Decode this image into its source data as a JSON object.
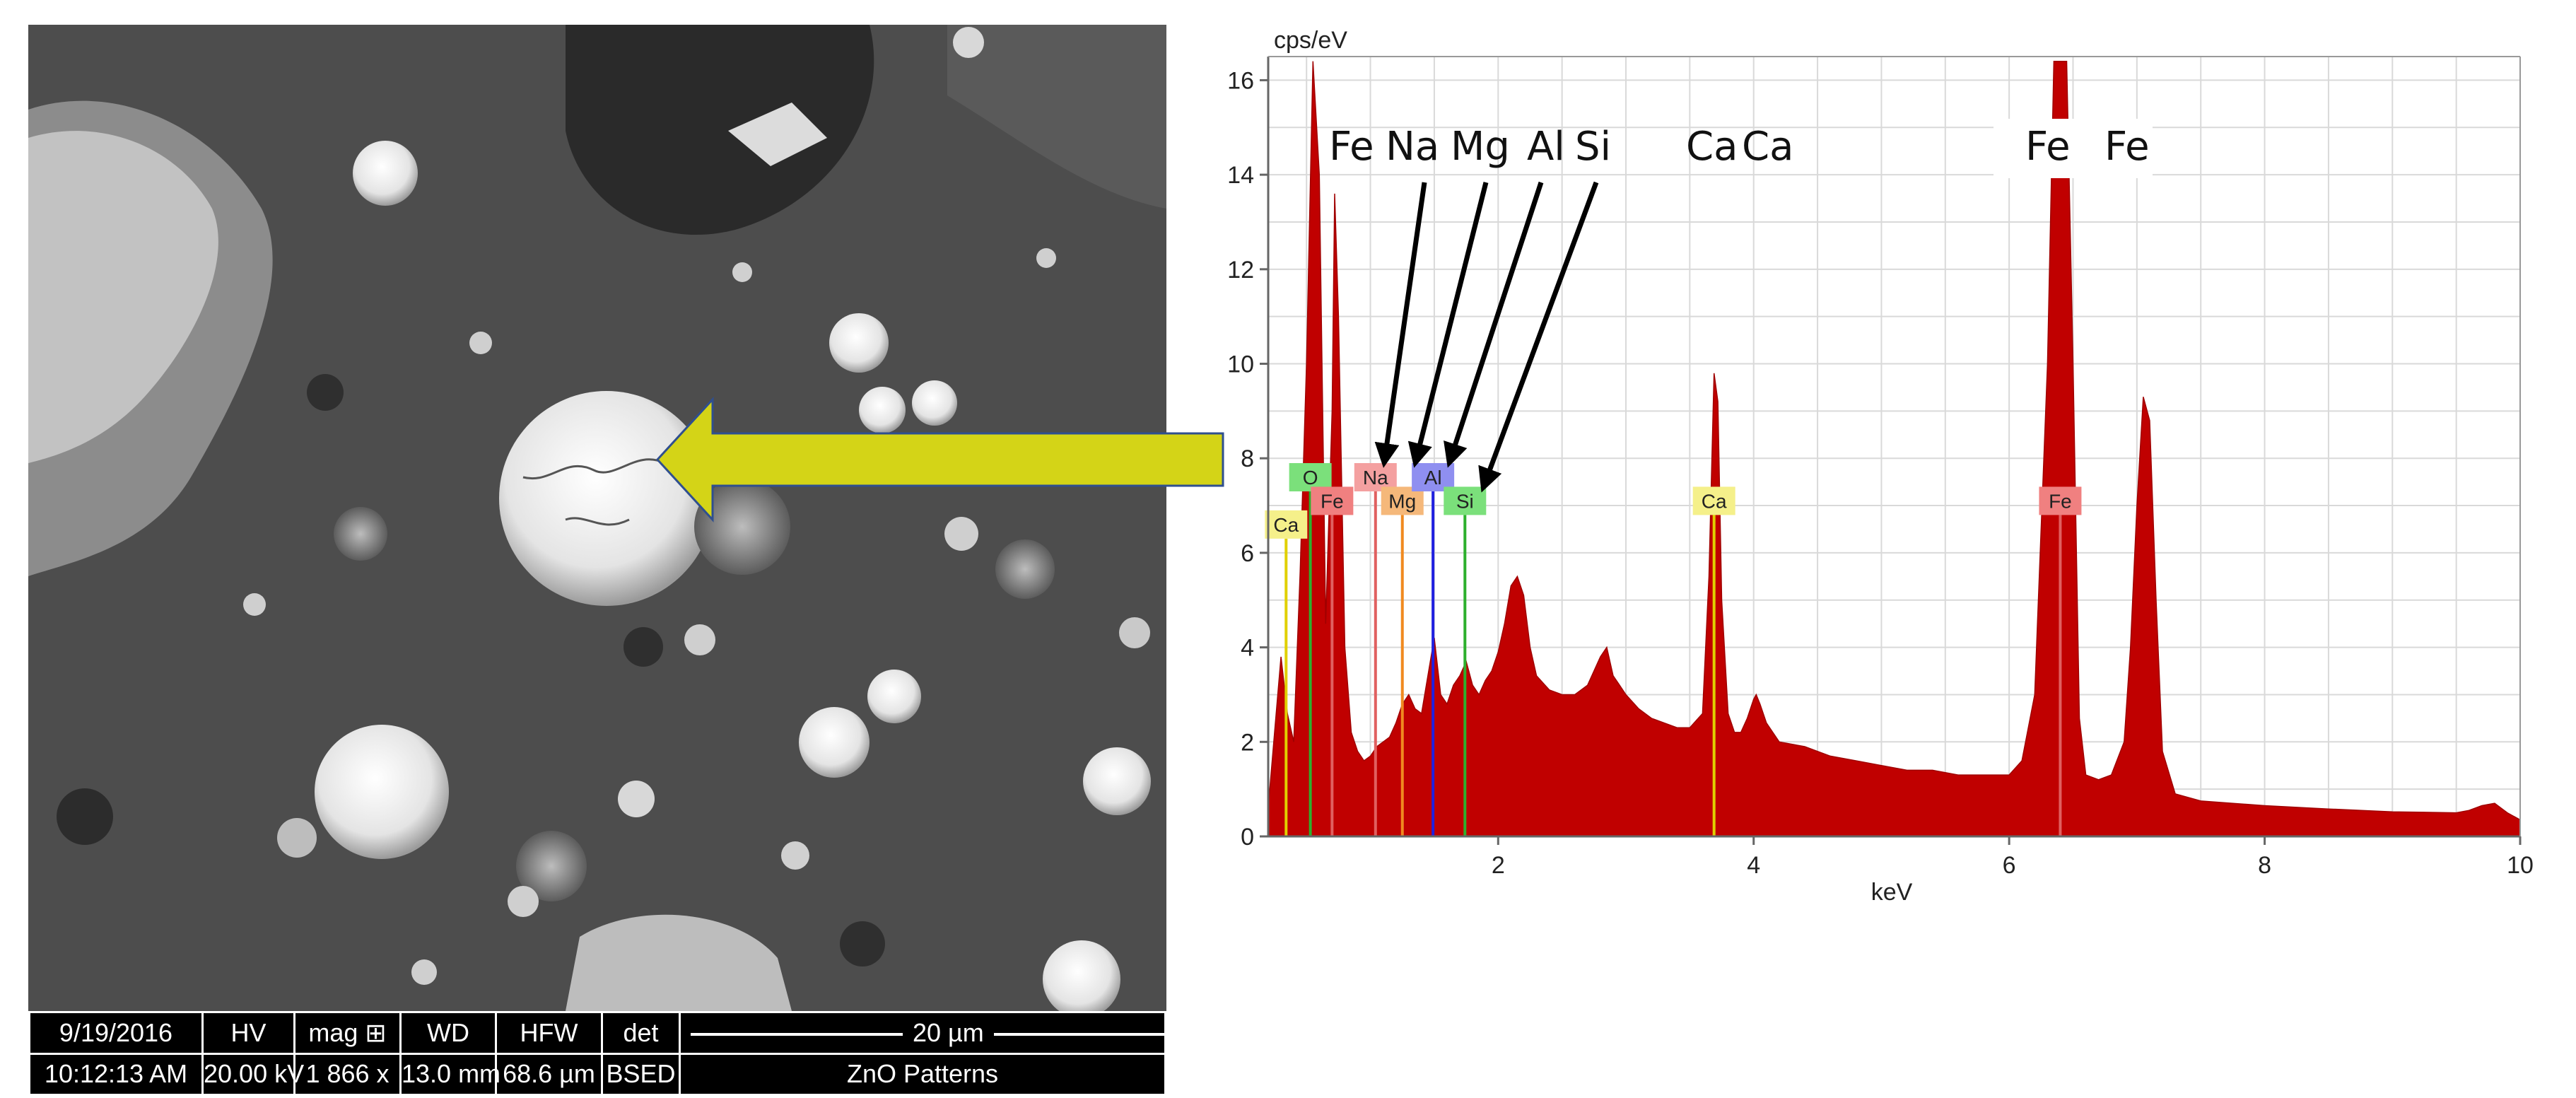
{
  "sem": {
    "databar": {
      "headers": [
        "9/19/2016",
        "HV",
        "mag ⊞",
        "WD",
        "HFW",
        "det"
      ],
      "values": [
        "10:12:13 AM",
        "20.00 kV",
        "1 866 x",
        "13.0 mm",
        "68.6 µm",
        "BSED"
      ],
      "scale_label": "20 µm",
      "title": "ZnO Patterns"
    }
  },
  "colors": {
    "spectrum_fill": "#c00000",
    "arrow_fill": "#d4d417",
    "grid": "#d9d9d9",
    "tag_O": "#7be07b",
    "tag_Fe": "#f08080",
    "tag_Na": "#f4a0a0",
    "tag_Mg": "#f5b87a",
    "tag_Al": "#8f8ff0",
    "tag_Si": "#7be07b",
    "tag_Ca": "#f5f08a"
  },
  "chart_data": {
    "type": "area",
    "ylabel": "cps/eV",
    "xlabel": "keV",
    "xlim": [
      0.2,
      10.0
    ],
    "ylim": [
      0,
      16.5
    ],
    "xticks": [
      2,
      4,
      6,
      8,
      10
    ],
    "yticks": [
      0,
      2,
      4,
      6,
      8,
      10,
      12,
      14,
      16
    ],
    "grid": true,
    "series": [
      {
        "x": [
          0.2,
          0.25,
          0.3,
          0.35,
          0.4,
          0.45,
          0.5,
          0.55,
          0.6,
          0.65,
          0.7,
          0.72,
          0.75,
          0.8,
          0.85,
          0.9,
          0.95,
          1.0,
          1.05,
          1.1,
          1.15,
          1.2,
          1.25,
          1.3,
          1.35,
          1.4,
          1.45,
          1.5,
          1.55,
          1.6,
          1.65,
          1.7,
          1.75,
          1.8,
          1.85,
          1.9,
          1.95,
          2.0,
          2.05,
          2.1,
          2.15,
          2.2,
          2.25,
          2.3,
          2.4,
          2.5,
          2.6,
          2.7,
          2.8,
          2.85,
          2.9,
          2.95,
          3.0,
          3.1,
          3.2,
          3.3,
          3.4,
          3.5,
          3.6,
          3.65,
          3.69,
          3.72,
          3.75,
          3.8,
          3.85,
          3.9,
          3.95,
          4.0,
          4.02,
          4.05,
          4.1,
          4.2,
          4.4,
          4.6,
          4.8,
          5.0,
          5.2,
          5.4,
          5.6,
          5.8,
          6.0,
          6.1,
          6.2,
          6.3,
          6.35,
          6.4,
          6.45,
          6.5,
          6.55,
          6.6,
          6.7,
          6.8,
          6.9,
          6.95,
          7.0,
          7.05,
          7.1,
          7.15,
          7.2,
          7.3,
          7.5,
          8.0,
          8.5,
          9.0,
          9.5,
          9.6,
          9.7,
          9.8,
          9.9,
          10.0
        ],
        "y": [
          0.6,
          2.2,
          3.8,
          2.6,
          2.0,
          5.6,
          10.0,
          16.4,
          14.0,
          4.5,
          9.0,
          13.6,
          11.0,
          4.0,
          2.2,
          1.8,
          1.6,
          1.7,
          1.9,
          2.0,
          2.1,
          2.4,
          2.8,
          3.0,
          2.7,
          2.6,
          3.4,
          4.2,
          3.0,
          2.8,
          3.2,
          3.4,
          3.7,
          3.2,
          3.0,
          3.3,
          3.5,
          3.9,
          4.5,
          5.3,
          5.5,
          5.1,
          4.0,
          3.4,
          3.1,
          3.0,
          3.0,
          3.2,
          3.8,
          4.0,
          3.4,
          3.2,
          3.0,
          2.7,
          2.5,
          2.4,
          2.3,
          2.3,
          2.6,
          5.5,
          9.8,
          9.2,
          5.0,
          2.6,
          2.2,
          2.2,
          2.5,
          2.9,
          3.0,
          2.8,
          2.4,
          2.0,
          1.9,
          1.7,
          1.6,
          1.5,
          1.4,
          1.4,
          1.3,
          1.3,
          1.3,
          1.6,
          3.0,
          10.0,
          16.4,
          16.4,
          16.4,
          10.0,
          2.5,
          1.3,
          1.2,
          1.3,
          2.0,
          4.0,
          7.0,
          9.3,
          8.8,
          5.0,
          1.8,
          0.9,
          0.75,
          0.65,
          0.58,
          0.52,
          0.5,
          0.55,
          0.65,
          0.7,
          0.5,
          0.35
        ]
      }
    ],
    "element_markers": [
      {
        "label": "Ca",
        "x": 0.34,
        "y": 6.3,
        "color": "#e0d000"
      },
      {
        "label": "O",
        "x": 0.53,
        "y": 7.3,
        "color": "#2db02d"
      },
      {
        "label": "Fe",
        "x": 0.7,
        "y": 6.8,
        "color": "#e06060"
      },
      {
        "label": "Na",
        "x": 1.04,
        "y": 7.3,
        "color": "#e06060"
      },
      {
        "label": "Mg",
        "x": 1.25,
        "y": 6.8,
        "color": "#f08a20"
      },
      {
        "label": "Al",
        "x": 1.49,
        "y": 7.3,
        "color": "#2020e0"
      },
      {
        "label": "Si",
        "x": 1.74,
        "y": 6.8,
        "color": "#2db02d"
      },
      {
        "label": "Ca",
        "x": 3.69,
        "y": 6.8,
        "color": "#e0d000"
      },
      {
        "label": "Fe",
        "x": 6.4,
        "y": 6.8,
        "color": "#e06060"
      }
    ],
    "annotations": [
      "Fe",
      "Na",
      "Mg",
      "Al",
      "Si",
      "Ca",
      "Ca",
      "Fe",
      "Fe"
    ]
  }
}
